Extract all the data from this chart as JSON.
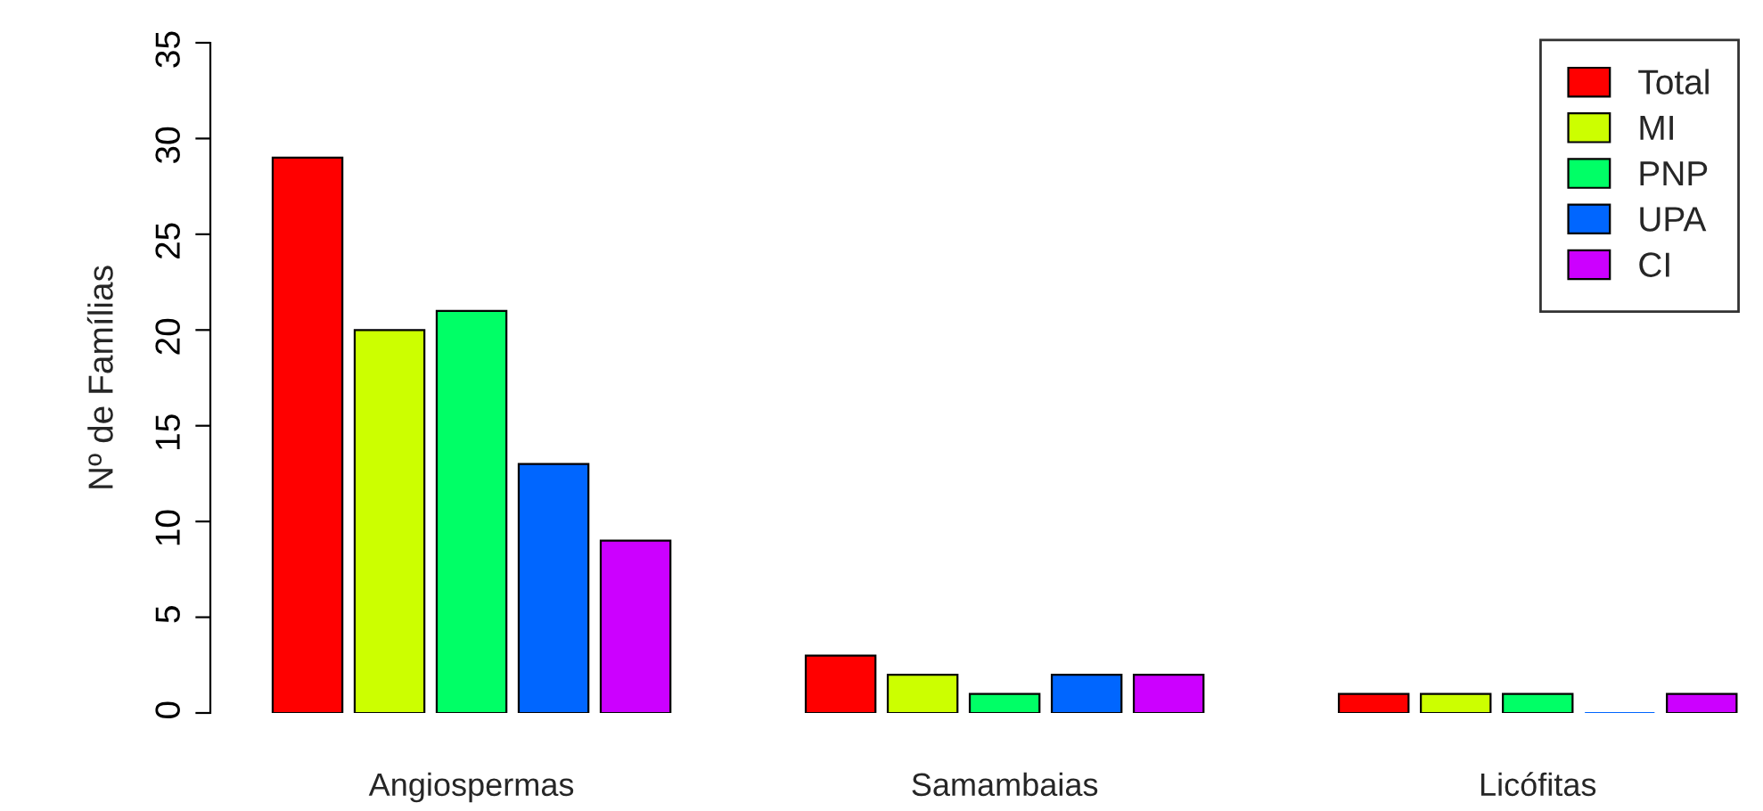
{
  "chart_data": {
    "type": "bar",
    "ylabel": "Nº de Famílias",
    "categories": [
      "Angiospermas",
      "Samambaias",
      "Licófitas"
    ],
    "series": [
      {
        "name": "Total",
        "color": "#ff0000",
        "values": [
          29,
          3,
          1
        ]
      },
      {
        "name": "MI",
        "color": "#ccff00",
        "values": [
          20,
          2,
          1
        ]
      },
      {
        "name": "PNP",
        "color": "#00ff66",
        "values": [
          21,
          1,
          1
        ]
      },
      {
        "name": "UPA",
        "color": "#0066ff",
        "values": [
          13,
          2,
          0
        ]
      },
      {
        "name": "CI",
        "color": "#cc00ff",
        "values": [
          9,
          2,
          1
        ]
      }
    ],
    "ylim": [
      0,
      35
    ],
    "yticks": [
      0,
      5,
      10,
      15,
      20,
      25,
      30,
      35
    ],
    "grid": false,
    "legend": "top right"
  }
}
